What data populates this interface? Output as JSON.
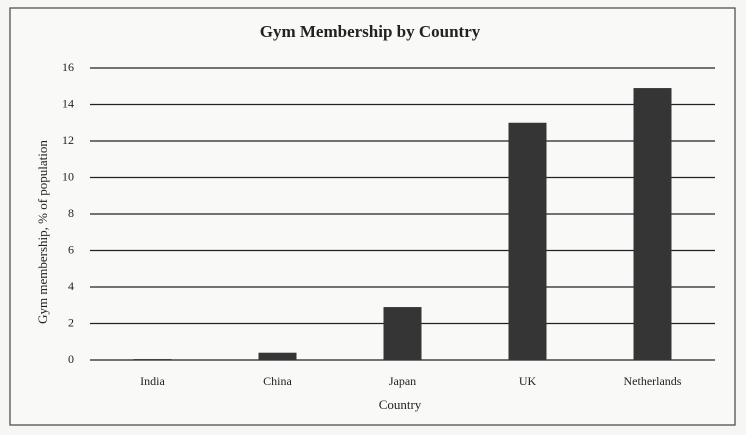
{
  "chart_data": {
    "type": "bar",
    "title": "Gym Membership by Country",
    "x_label": "Country",
    "y_label": "Gym membership, % of population",
    "categories": [
      "India",
      "China",
      "Japan",
      "UK",
      "Netherlands"
    ],
    "values": [
      0.05,
      0.4,
      2.9,
      13,
      14.9
    ],
    "color": "#353535",
    "ylim": [
      0,
      16
    ],
    "yticks": [
      0,
      2,
      4,
      6,
      8,
      10,
      12,
      14,
      16
    ],
    "grid": true
  }
}
